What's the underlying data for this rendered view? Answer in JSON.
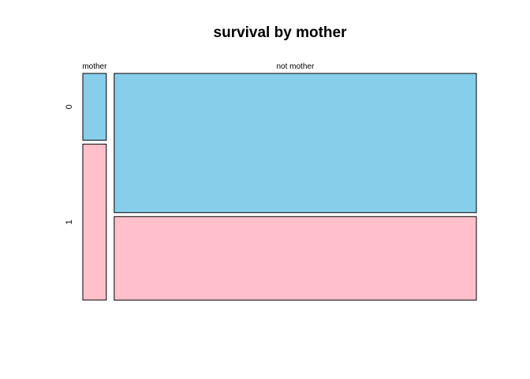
{
  "chart_data": {
    "type": "mosaic",
    "title": "survival by mother",
    "xvar_levels": [
      "mother",
      "not mother"
    ],
    "yvar_levels": [
      "0",
      "1"
    ],
    "colors": {
      "0": "#87ceeb",
      "1": "#ffc0cb"
    },
    "column_proportions": [
      0.061,
      0.939
    ],
    "cells": [
      {
        "x": "mother",
        "y": "0",
        "proportion": 0.3
      },
      {
        "x": "mother",
        "y": "1",
        "proportion": 0.7
      },
      {
        "x": "not mother",
        "y": "0",
        "proportion": 0.625
      },
      {
        "x": "not mother",
        "y": "1",
        "proportion": 0.375
      }
    ],
    "grid": false,
    "legend": "none"
  }
}
